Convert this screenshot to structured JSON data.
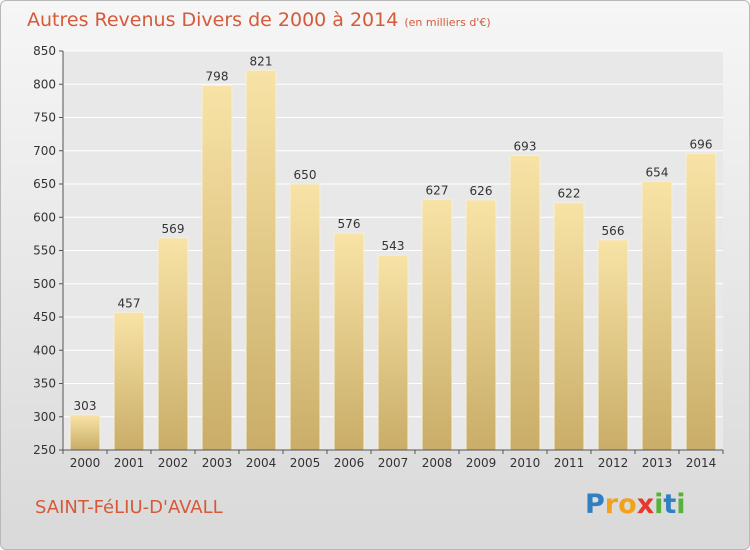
{
  "chart_data": {
    "type": "bar",
    "title": "Autres Revenus Divers de 2000 à 2014",
    "unit_label": "(en milliers d'€)",
    "categories": [
      "2000",
      "2001",
      "2002",
      "2003",
      "2004",
      "2005",
      "2006",
      "2007",
      "2008",
      "2009",
      "2010",
      "2011",
      "2012",
      "2013",
      "2014"
    ],
    "values": [
      303,
      457,
      569,
      798,
      821,
      650,
      576,
      543,
      627,
      626,
      693,
      622,
      566,
      654,
      696
    ],
    "ylim": [
      250,
      850
    ],
    "yticks": [
      250,
      300,
      350,
      400,
      450,
      500,
      550,
      600,
      650,
      700,
      750,
      800,
      850
    ],
    "grid": true,
    "bar_color": "#e8cf8a"
  },
  "commune": "SAINT-FéLIU-D'AVALL",
  "logo": {
    "letters": [
      {
        "ch": "P",
        "color": "#2f7fc1"
      },
      {
        "ch": "r",
        "color": "#f2a21a"
      },
      {
        "ch": "o",
        "color": "#f2a21a"
      },
      {
        "ch": "x",
        "color": "#e5392e"
      },
      {
        "ch": "i",
        "color": "#58b23a"
      },
      {
        "ch": "t",
        "color": "#2f7fc1"
      },
      {
        "ch": "i",
        "color": "#58b23a"
      }
    ]
  },
  "colors": {
    "title": "#d55a3a",
    "axis": "#333333",
    "grid": "#ffffff"
  }
}
